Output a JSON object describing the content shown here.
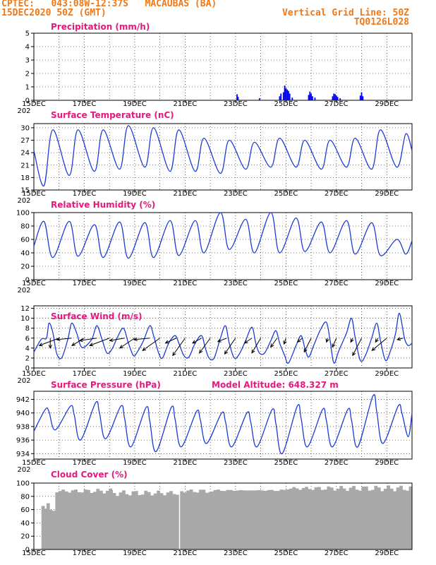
{
  "header": {
    "line1_left": "CPTEC:   043:08W-12:37S   MACAUBAS (BA)",
    "line2_left": "15DEC2020 50Z (GMT)",
    "line1_right": "Vertical Grid Line: 50Z",
    "line2_right": "TQ0126L028"
  },
  "x_axis": {
    "tick_labels": [
      "15DEC",
      "17DEC",
      "19DEC",
      "21DEC",
      "23DEC",
      "25DEC",
      "27DEC",
      "29DEC"
    ],
    "year_fragment": "202"
  },
  "chart_data": [
    {
      "type": "bar",
      "title": "Precipitation (mm/h)",
      "y_ticks": [
        0,
        1,
        2,
        3,
        4,
        5
      ],
      "ylim": [
        0,
        5
      ],
      "xlim_days": [
        15,
        30
      ],
      "color": "#0000ff",
      "bars": [
        {
          "day": 23.06,
          "value": 0.45
        },
        {
          "day": 23.1,
          "value": 0.25
        },
        {
          "day": 23.95,
          "value": 0.15
        },
        {
          "day": 24.75,
          "value": 0.3
        },
        {
          "day": 24.8,
          "value": 0.5
        },
        {
          "day": 24.9,
          "value": 0.6
        },
        {
          "day": 24.95,
          "value": 1.1
        },
        {
          "day": 25.0,
          "value": 0.9
        },
        {
          "day": 25.05,
          "value": 0.8
        },
        {
          "day": 25.1,
          "value": 0.7
        },
        {
          "day": 25.15,
          "value": 0.5
        },
        {
          "day": 25.25,
          "value": 0.2
        },
        {
          "day": 25.9,
          "value": 0.4
        },
        {
          "day": 25.95,
          "value": 0.65
        },
        {
          "day": 26.0,
          "value": 0.5
        },
        {
          "day": 26.05,
          "value": 0.3
        },
        {
          "day": 26.15,
          "value": 0.2
        },
        {
          "day": 26.85,
          "value": 0.3
        },
        {
          "day": 26.9,
          "value": 0.5
        },
        {
          "day": 26.95,
          "value": 0.45
        },
        {
          "day": 27.0,
          "value": 0.35
        },
        {
          "day": 27.05,
          "value": 0.25
        },
        {
          "day": 27.15,
          "value": 0.15
        },
        {
          "day": 27.95,
          "value": 0.35
        },
        {
          "day": 28.0,
          "value": 0.6
        },
        {
          "day": 28.05,
          "value": 0.3
        }
      ]
    },
    {
      "type": "line",
      "title": "Surface Temperature (nC)",
      "y_ticks": [
        15,
        18,
        21,
        24,
        27,
        30
      ],
      "ylim": [
        15,
        31
      ],
      "xlim_days": [
        15,
        30
      ],
      "color": "#1a3bd6",
      "daily": {
        "min_values": [
          16,
          18.5,
          19.5,
          20,
          20.5,
          19.5,
          19.5,
          19,
          20,
          20.5,
          20.5,
          20,
          20.5,
          20,
          20.5
        ],
        "max_values": [
          29.5,
          29.5,
          29.5,
          30.5,
          30,
          29.5,
          27.5,
          27,
          26.5,
          27.5,
          27,
          27,
          27.5,
          29.5,
          28.5
        ],
        "min_phase": 0.4,
        "max_phase": 0.75
      }
    },
    {
      "type": "line",
      "title": "Relative Humidity (%)",
      "y_ticks": [
        0,
        20,
        40,
        60,
        80,
        100
      ],
      "ylim": [
        0,
        100
      ],
      "xlim_days": [
        15,
        30
      ],
      "color": "#1a3bd6",
      "daily": {
        "min_values": [
          33,
          35,
          33,
          32,
          33,
          36,
          40,
          45,
          40,
          40,
          42,
          40,
          38,
          36,
          38
        ],
        "max_values": [
          87,
          87,
          82,
          86,
          85,
          88,
          88,
          100,
          90,
          100,
          92,
          86,
          88,
          85,
          60
        ],
        "min_phase": 0.75,
        "max_phase": 0.4
      }
    },
    {
      "type": "line",
      "title": "Surface Wind (m/s)",
      "y_ticks": [
        0,
        2,
        4,
        6,
        8,
        10,
        12
      ],
      "ylim": [
        0,
        12.5
      ],
      "xlim_days": [
        15,
        30
      ],
      "color": "#1a3bd6",
      "speed_points": [
        [
          15.0,
          3.2
        ],
        [
          15.3,
          5.8
        ],
        [
          15.5,
          6.0
        ],
        [
          15.6,
          9.0
        ],
        [
          15.75,
          7.2
        ],
        [
          15.9,
          3.0
        ],
        [
          16.1,
          2.0
        ],
        [
          16.35,
          5.8
        ],
        [
          16.5,
          9.0
        ],
        [
          16.7,
          7.0
        ],
        [
          16.85,
          4.5
        ],
        [
          17.0,
          4.2
        ],
        [
          17.3,
          5.8
        ],
        [
          17.5,
          8.5
        ],
        [
          17.7,
          5.8
        ],
        [
          17.9,
          3.0
        ],
        [
          18.1,
          3.8
        ],
        [
          18.3,
          6.0
        ],
        [
          18.55,
          8.0
        ],
        [
          18.75,
          5.0
        ],
        [
          18.95,
          2.5
        ],
        [
          19.1,
          3.2
        ],
        [
          19.35,
          5.5
        ],
        [
          19.6,
          8.5
        ],
        [
          19.75,
          6.5
        ],
        [
          19.95,
          3.0
        ],
        [
          20.1,
          2.0
        ],
        [
          20.35,
          5.0
        ],
        [
          20.6,
          6.5
        ],
        [
          20.75,
          5.0
        ],
        [
          20.95,
          2.5
        ],
        [
          21.15,
          2.2
        ],
        [
          21.4,
          5.0
        ],
        [
          21.65,
          6.5
        ],
        [
          21.8,
          4.0
        ],
        [
          21.95,
          2.0
        ],
        [
          22.15,
          2.0
        ],
        [
          22.4,
          6.0
        ],
        [
          22.6,
          8.5
        ],
        [
          22.75,
          5.0
        ],
        [
          22.95,
          2.0
        ],
        [
          23.15,
          2.8
        ],
        [
          23.4,
          5.5
        ],
        [
          23.65,
          8.2
        ],
        [
          23.8,
          5.0
        ],
        [
          23.95,
          3.0
        ],
        [
          24.15,
          3.0
        ],
        [
          24.4,
          5.5
        ],
        [
          24.6,
          7.5
        ],
        [
          24.75,
          5.0
        ],
        [
          24.95,
          2.5
        ],
        [
          25.1,
          1.0
        ],
        [
          25.4,
          4.5
        ],
        [
          25.6,
          6.5
        ],
        [
          25.75,
          4.0
        ],
        [
          25.9,
          2.2
        ],
        [
          26.1,
          4.5
        ],
        [
          26.35,
          7.5
        ],
        [
          26.6,
          9.2
        ],
        [
          26.75,
          5.5
        ],
        [
          26.9,
          1.0
        ],
        [
          27.1,
          3.5
        ],
        [
          27.4,
          7.0
        ],
        [
          27.6,
          10.0
        ],
        [
          27.75,
          6.0
        ],
        [
          27.95,
          1.5
        ],
        [
          28.15,
          2.5
        ],
        [
          28.4,
          6.0
        ],
        [
          28.6,
          9.0
        ],
        [
          28.75,
          5.5
        ],
        [
          28.95,
          1.5
        ],
        [
          29.15,
          3.5
        ],
        [
          29.35,
          7.0
        ],
        [
          29.5,
          11.0
        ],
        [
          29.7,
          6.0
        ],
        [
          29.85,
          4.5
        ],
        [
          30.0,
          5.0
        ]
      ],
      "wind_vectors": [
        {
          "day": 15.65,
          "u": 0.0,
          "v": -2.0
        },
        {
          "day": 16.0,
          "u": -4.0,
          "v": -1.5
        },
        {
          "day": 16.5,
          "u": -3.0,
          "v": -0.3
        },
        {
          "day": 17.0,
          "u": -2.5,
          "v": -1.5
        },
        {
          "day": 17.5,
          "u": -3.5,
          "v": -0.5
        },
        {
          "day": 18.0,
          "u": -4.0,
          "v": -1.5
        },
        {
          "day": 18.6,
          "u": -3.0,
          "v": -0.5
        },
        {
          "day": 19.0,
          "u": -3.0,
          "v": -2.0
        },
        {
          "day": 19.6,
          "u": -3.2,
          "v": -0.3
        },
        {
          "day": 20.0,
          "u": -3.5,
          "v": -2.5
        },
        {
          "day": 20.65,
          "u": -2.2,
          "v": -1.0
        },
        {
          "day": 21.0,
          "u": -2.5,
          "v": -3.5
        },
        {
          "day": 21.65,
          "u": -1.8,
          "v": -1.0
        },
        {
          "day": 22.0,
          "u": -2.2,
          "v": -3.0
        },
        {
          "day": 22.65,
          "u": -1.8,
          "v": -0.7
        },
        {
          "day": 23.0,
          "u": -2.2,
          "v": -3.2
        },
        {
          "day": 23.65,
          "u": -1.5,
          "v": -1.0
        },
        {
          "day": 24.0,
          "u": -1.8,
          "v": -3.0
        },
        {
          "day": 24.65,
          "u": -1.3,
          "v": -1.8
        },
        {
          "day": 25.0,
          "u": -0.4,
          "v": -1.2
        },
        {
          "day": 25.65,
          "u": -1.0,
          "v": -0.8
        },
        {
          "day": 26.0,
          "u": -1.4,
          "v": -2.8
        },
        {
          "day": 26.65,
          "u": -0.2,
          "v": -0.8
        },
        {
          "day": 27.0,
          "u": -0.8,
          "v": -1.8
        },
        {
          "day": 27.65,
          "u": -0.4,
          "v": -0.8
        },
        {
          "day": 28.0,
          "u": -1.8,
          "v": -3.5
        },
        {
          "day": 28.65,
          "u": -0.5,
          "v": -0.8
        },
        {
          "day": 29.0,
          "u": -3.0,
          "v": -2.5
        },
        {
          "day": 29.65,
          "u": -1.2,
          "v": -0.3
        }
      ]
    },
    {
      "type": "line",
      "title": "Surface Pressure (hPa)",
      "annotation": "Model Altitude: 648.327  m",
      "y_ticks": [
        934,
        936,
        938,
        940,
        942
      ],
      "ylim": [
        933.2,
        943.2
      ],
      "xlim_days": [
        15,
        30
      ],
      "color": "#1a3bd6",
      "daily": {
        "max_values": [
          940.5,
          941.0,
          941.5,
          941.0,
          940.8,
          940.8,
          940.2,
          940.0,
          940.0,
          940.5,
          941.0,
          940.5,
          940.5,
          942.5,
          941.0
        ],
        "min_values": [
          937.5,
          936.0,
          936.2,
          935.0,
          934.3,
          935.0,
          935.5,
          935.0,
          935.0,
          934.0,
          935.0,
          935.0,
          935.0,
          935.5,
          936.5
        ]
      }
    },
    {
      "type": "bar",
      "title": "Cloud Cover (%)",
      "y_ticks": [
        0,
        20,
        40,
        60,
        80,
        100
      ],
      "ylim": [
        0,
        100
      ],
      "xlim_days": [
        15,
        30
      ],
      "color": "#a8a8a8",
      "segments": [
        {
          "from_day": 15.3,
          "to_day": 15.5,
          "level": 62
        },
        {
          "from_day": 15.5,
          "to_day": 15.6,
          "level": 72
        },
        {
          "from_day": 15.6,
          "to_day": 15.75,
          "level": 58
        },
        {
          "from_day": 15.75,
          "to_day": 15.85,
          "level": 40
        },
        {
          "from_day": 15.85,
          "to_day": 18.0,
          "level": 88
        },
        {
          "from_day": 18.0,
          "to_day": 20.7,
          "level": 85
        },
        {
          "from_day": 20.7,
          "to_day": 20.8,
          "level": 0
        },
        {
          "from_day": 20.8,
          "to_day": 22.0,
          "level": 88
        },
        {
          "from_day": 22.0,
          "to_day": 25.0,
          "level": 89
        },
        {
          "from_day": 25.0,
          "to_day": 30.0,
          "level": 92
        }
      ]
    }
  ]
}
